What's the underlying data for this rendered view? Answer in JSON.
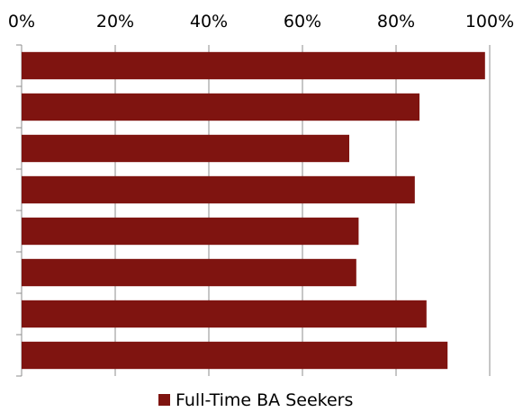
{
  "chart_data": {
    "type": "bar",
    "orientation": "horizontal",
    "title": "",
    "xlabel": "",
    "ylabel": "",
    "xlim": [
      0,
      100
    ],
    "x_ticks": [
      0,
      20,
      40,
      60,
      80,
      100
    ],
    "x_tick_labels": [
      "0%",
      "20%",
      "40%",
      "60%",
      "80%",
      "100%"
    ],
    "axis_position": "top",
    "grid": "vertical",
    "legend_position": "bottom-center",
    "categories": [
      "",
      "",
      "",
      "",
      "",
      "",
      "",
      ""
    ],
    "series": [
      {
        "name": "Full-Time BA Seekers",
        "color": "#7f1410",
        "values": [
          99,
          85,
          70,
          84,
          72,
          71.5,
          86.5,
          91
        ]
      }
    ]
  }
}
